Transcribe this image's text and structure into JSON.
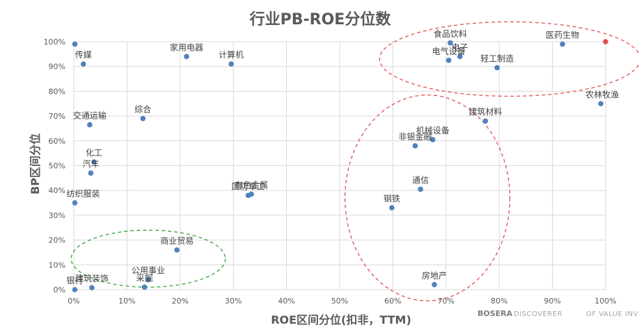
{
  "chart_data": {
    "type": "scatter",
    "title": "行业PB-ROE分位数",
    "xlabel": "ROE区间分位(扣非，TTM)",
    "ylabel": "BP区间分位",
    "xlim": [
      0,
      100
    ],
    "ylim": [
      0,
      100
    ],
    "x_ticks": [
      "0%",
      "10%",
      "20%",
      "30%",
      "40%",
      "50%",
      "60%",
      "70%",
      "80%",
      "90%",
      "100%"
    ],
    "y_ticks": [
      "0%",
      "10%",
      "20%",
      "30%",
      "40%",
      "50%",
      "60%",
      "70%",
      "80%",
      "90%",
      "100%"
    ],
    "grid": true,
    "point_color": "#4f81bd",
    "highlight_color": "#e05050",
    "points": [
      {
        "name": "",
        "x": 0.2,
        "y": 99
      },
      {
        "name": "传媒",
        "x": 1.8,
        "y": 91
      },
      {
        "name": "家用电器",
        "x": 21.2,
        "y": 94
      },
      {
        "name": "计算机",
        "x": 29.6,
        "y": 91
      },
      {
        "name": "食品饮料",
        "x": 70.8,
        "y": 99.5
      },
      {
        "name": "电子",
        "x": 72.6,
        "y": 94
      },
      {
        "name": "电气设备",
        "x": 70.5,
        "y": 92.5
      },
      {
        "name": "轻工制造",
        "x": 79.6,
        "y": 89.5
      },
      {
        "name": "医药生物",
        "x": 91.9,
        "y": 99
      },
      {
        "name": "",
        "x": 100,
        "y": 100,
        "highlight": true
      },
      {
        "name": "农林牧渔",
        "x": 99.1,
        "y": 75
      },
      {
        "name": "交通运输",
        "x": 3.0,
        "y": 66.5
      },
      {
        "name": "综合",
        "x": 13.0,
        "y": 69
      },
      {
        "name": "化工",
        "x": 3.8,
        "y": 51.5
      },
      {
        "name": "汽车",
        "x": 3.2,
        "y": 47
      },
      {
        "name": "纺织服装",
        "x": 0.2,
        "y": 35
      },
      {
        "name": "国防军工",
        "x": 32.8,
        "y": 38
      },
      {
        "name": "有色金属",
        "x": 33.4,
        "y": 38.5
      },
      {
        "name": "建筑材料",
        "x": 77.4,
        "y": 68
      },
      {
        "name": "机械设备",
        "x": 67.5,
        "y": 60.5
      },
      {
        "name": "非银金融",
        "x": 64.2,
        "y": 58
      },
      {
        "name": "通信",
        "x": 65.2,
        "y": 40.5
      },
      {
        "name": "钢铁",
        "x": 59.8,
        "y": 33
      },
      {
        "name": "商业贸易",
        "x": 19.4,
        "y": 16
      },
      {
        "name": "公用事业",
        "x": 14.0,
        "y": 4
      },
      {
        "name": "采掘",
        "x": 13.3,
        "y": 1
      },
      {
        "name": "银行",
        "x": 0.2,
        "y": 0
      },
      {
        "name": "建筑装饰",
        "x": 3.4,
        "y": 0.8
      },
      {
        "name": "房地产",
        "x": 67.8,
        "y": 2
      }
    ],
    "annotations": [
      {
        "shape": "ellipse",
        "color": "#e05050",
        "style": "dashed",
        "cx": 82,
        "cy": 93,
        "rx": 24.5,
        "ry": 15
      },
      {
        "shape": "ellipse",
        "color": "#e05050",
        "style": "dashed",
        "cx": 66.5,
        "cy": 37,
        "rx": 15.5,
        "ry": 41.5
      },
      {
        "shape": "ellipse",
        "color": "#3ca03c",
        "style": "dashed",
        "cx": 14,
        "cy": 12.5,
        "rx": 14.5,
        "ry": 11.5
      }
    ]
  },
  "branding": {
    "brand": "BOSERA",
    "tagline": "DISCOVERER",
    "suffix": "OF VALUE INVEST"
  }
}
